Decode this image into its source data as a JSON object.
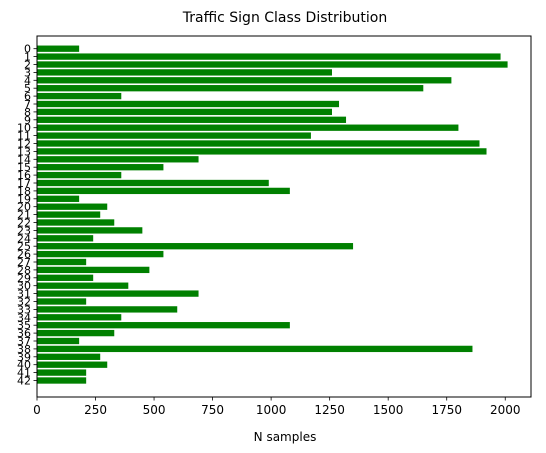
{
  "chart_data": {
    "type": "bar",
    "orientation": "horizontal",
    "title": "Traffic Sign Class Distribution",
    "xlabel": "N samples",
    "ylabel": "",
    "categories": [
      "0",
      "1",
      "2",
      "3",
      "4",
      "5",
      "6",
      "7",
      "8",
      "9",
      "10",
      "11",
      "12",
      "13",
      "14",
      "15",
      "16",
      "17",
      "18",
      "19",
      "20",
      "21",
      "22",
      "23",
      "24",
      "25",
      "26",
      "27",
      "28",
      "29",
      "30",
      "31",
      "32",
      "33",
      "34",
      "35",
      "36",
      "37",
      "38",
      "39",
      "40",
      "41",
      "42"
    ],
    "values": [
      180,
      1980,
      2010,
      1260,
      1770,
      1650,
      360,
      1290,
      1260,
      1320,
      1800,
      1170,
      1890,
      1920,
      690,
      540,
      360,
      990,
      1080,
      180,
      300,
      270,
      330,
      450,
      240,
      1350,
      540,
      210,
      480,
      240,
      390,
      690,
      210,
      599,
      360,
      1080,
      330,
      180,
      1860,
      270,
      300,
      210,
      210
    ],
    "xlim": [
      0,
      2110
    ],
    "xticks": [
      0,
      250,
      500,
      750,
      1000,
      1250,
      1500,
      1750,
      2000
    ],
    "bar_color": "#008000",
    "grid": false,
    "legend": "none"
  }
}
